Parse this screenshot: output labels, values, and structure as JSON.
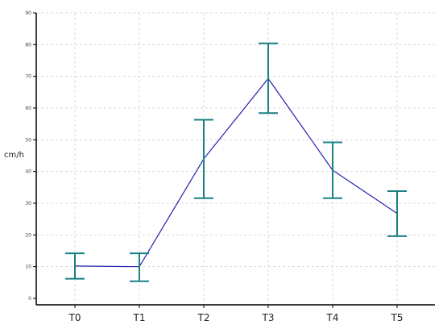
{
  "chart_data": {
    "type": "line",
    "ylabel": "cm/h",
    "xlabel": "",
    "categories": [
      "T0",
      "T1",
      "T2",
      "T3",
      "T4",
      "T5"
    ],
    "ylim": [
      0,
      90
    ],
    "yticks": [
      0,
      10,
      20,
      30,
      40,
      50,
      60,
      70,
      80,
      90
    ],
    "grid": true,
    "series": [
      {
        "values": [
          10.2,
          10.0,
          44.0,
          69.3,
          40.4,
          26.8
        ],
        "error_low": [
          6.2,
          5.4,
          31.6,
          58.4,
          31.6,
          19.6
        ],
        "error_high": [
          14.2,
          14.2,
          56.3,
          80.4,
          49.2,
          33.8
        ]
      }
    ],
    "line_color": "#2020b0",
    "error_bar_color": "#1a8080"
  }
}
